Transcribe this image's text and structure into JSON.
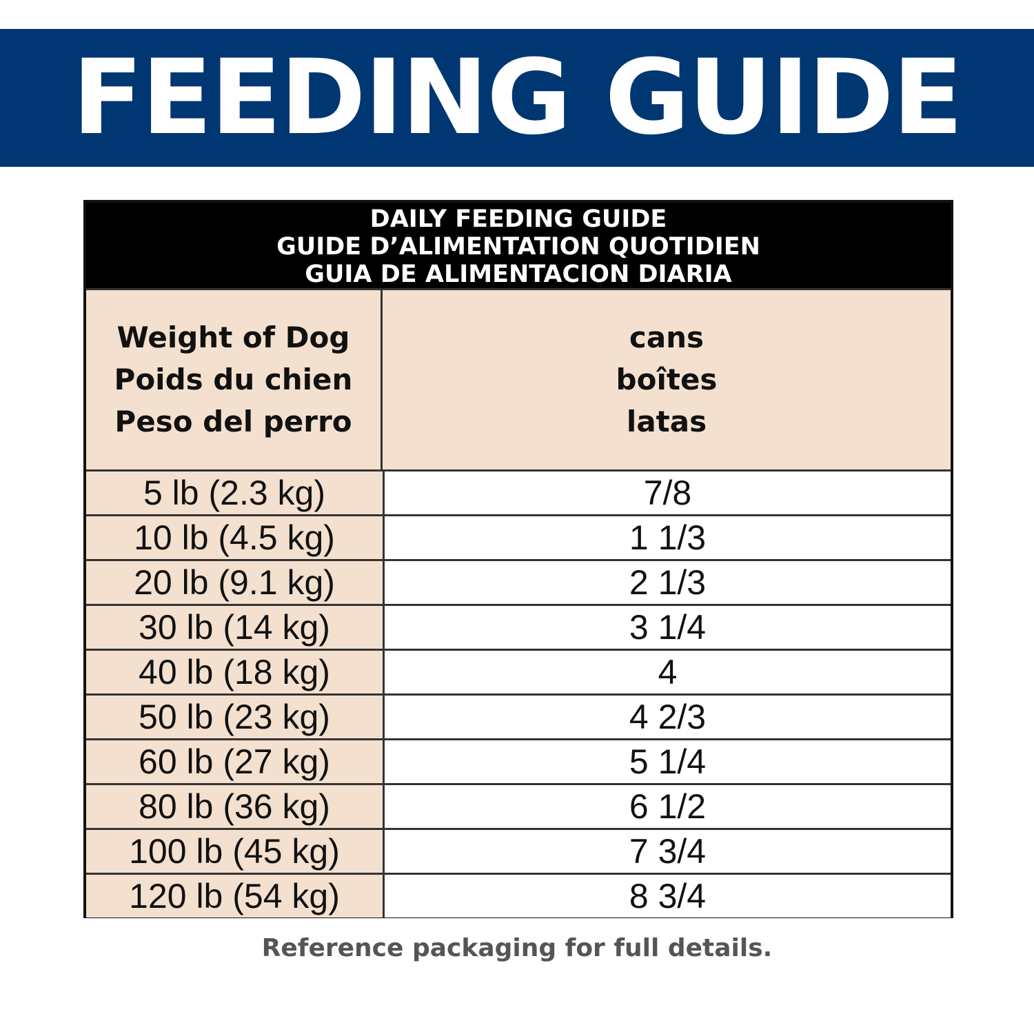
{
  "header": {
    "title": "FEEDING GUIDE"
  },
  "table": {
    "title": [
      "DAILY FEEDING GUIDE",
      "GUIDE D’ALIMENTATION QUOTIDIEN",
      "GUIA DE ALIMENTACION DIARIA"
    ],
    "columns": [
      [
        "Weight of Dog",
        "Poids du chien",
        "Peso del perro"
      ],
      [
        "cans",
        "boîtes",
        "latas"
      ]
    ],
    "rows": [
      [
        "5 lb (2.3 kg)",
        "7/8"
      ],
      [
        "10 lb (4.5 kg)",
        "1 1/3"
      ],
      [
        "20 lb (9.1 kg)",
        "2 1/3"
      ],
      [
        "30 lb (14 kg)",
        "3 1/4"
      ],
      [
        "40 lb (18 kg)",
        "4"
      ],
      [
        "50 lb (23 kg)",
        "4 2/3"
      ],
      [
        "60 lb (27 kg)",
        "5 1/4"
      ],
      [
        "80 lb (36 kg)",
        "6 1/2"
      ],
      [
        "100 lb (45 kg)",
        "7 3/4"
      ],
      [
        "120 lb (54 kg)",
        "8 3/4"
      ]
    ]
  },
  "footnote": "Reference packaging for full details."
}
